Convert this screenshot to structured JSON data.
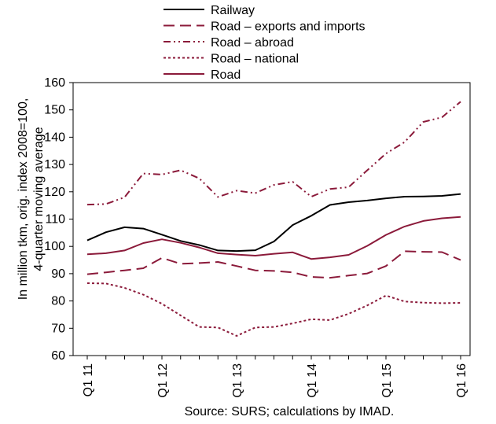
{
  "chart_data": {
    "type": "line",
    "title": "",
    "ylabel_line1": "In million tkm, orig. index 2008=100,",
    "ylabel_line2": "4-quarter moving average",
    "xlabel": "",
    "ylim": [
      60,
      160
    ],
    "yticks": [
      60,
      70,
      80,
      90,
      100,
      110,
      120,
      130,
      140,
      150,
      160
    ],
    "x_tick_labels": [
      "Q1 11",
      "Q1 12",
      "Q1 13",
      "Q1 14",
      "Q1 15",
      "Q1 16"
    ],
    "grid": false,
    "legend_position": "top",
    "source": "Source: SURS; calculations by IMAD.",
    "series": [
      {
        "name": "Railway",
        "color": "#000000",
        "dash": "solid",
        "values": [
          102.2,
          105.2,
          107.0,
          106.5,
          104.3,
          102.0,
          100.5,
          98.5,
          98.3,
          98.6,
          101.8,
          107.8,
          111.2,
          115.2,
          116.2,
          116.8,
          117.6,
          118.2,
          118.3,
          118.5,
          119.2
        ]
      },
      {
        "name": "Road – exports and imports",
        "color": "#8b1a3a",
        "dash": "longdash",
        "values": [
          89.8,
          90.5,
          91.2,
          92.0,
          95.8,
          93.6,
          93.9,
          94.3,
          92.8,
          91.2,
          91.0,
          90.5,
          88.8,
          88.5,
          89.3,
          90.1,
          92.8,
          98.2,
          98.0,
          97.9,
          95.0
        ]
      },
      {
        "name": "Road – abroad",
        "color": "#8b1a3a",
        "dash": "dashdotdot",
        "values": [
          115.3,
          115.5,
          118.0,
          126.7,
          126.3,
          127.9,
          124.9,
          118.1,
          120.4,
          119.5,
          122.5,
          123.7,
          118.2,
          121.0,
          121.7,
          127.9,
          134.0,
          138.2,
          145.6,
          147.3,
          153.0
        ]
      },
      {
        "name": "Road – national",
        "color": "#8b1a3a",
        "dash": "dotted",
        "values": [
          86.5,
          86.4,
          84.8,
          82.3,
          79.0,
          74.7,
          70.5,
          70.3,
          67.2,
          70.3,
          70.5,
          71.8,
          73.3,
          73.0,
          75.3,
          78.4,
          82.0,
          79.8,
          79.4,
          79.2,
          79.3
        ]
      },
      {
        "name": "Road",
        "color": "#8b1a3a",
        "dash": "solid",
        "values": [
          97.1,
          97.5,
          98.5,
          101.2,
          102.6,
          101.3,
          99.6,
          97.5,
          97.0,
          96.6,
          97.3,
          97.8,
          95.4,
          96.0,
          96.9,
          100.2,
          104.2,
          107.3,
          109.3,
          110.3,
          110.8
        ]
      }
    ]
  }
}
